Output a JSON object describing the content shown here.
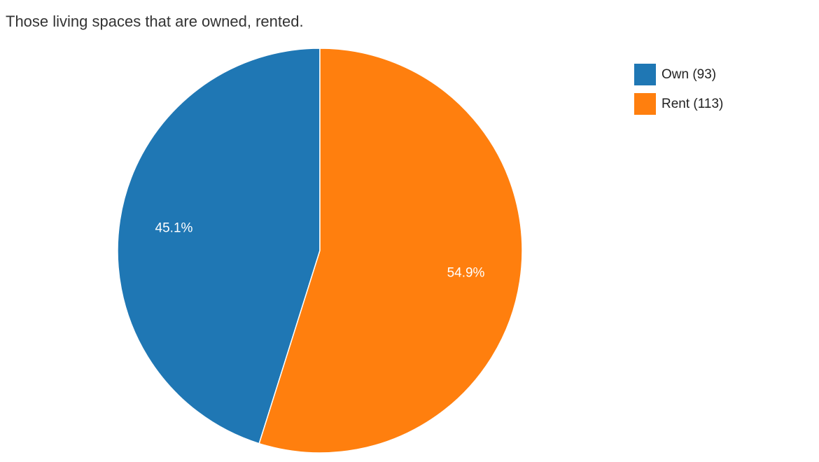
{
  "chart_data": {
    "type": "pie",
    "title": "Those living spaces that are owned, rented.",
    "start_angle_deg": 0,
    "direction": "counterclockwise",
    "legend_position": "right",
    "slices": [
      {
        "label": "Own",
        "value": 93,
        "percent_label": "45.1%",
        "color": "#1f77b4",
        "legend_text": "Own (93)"
      },
      {
        "label": "Rent",
        "value": 113,
        "percent_label": "54.9%",
        "color": "#ff7f0e",
        "legend_text": "Rent (113)"
      }
    ]
  }
}
